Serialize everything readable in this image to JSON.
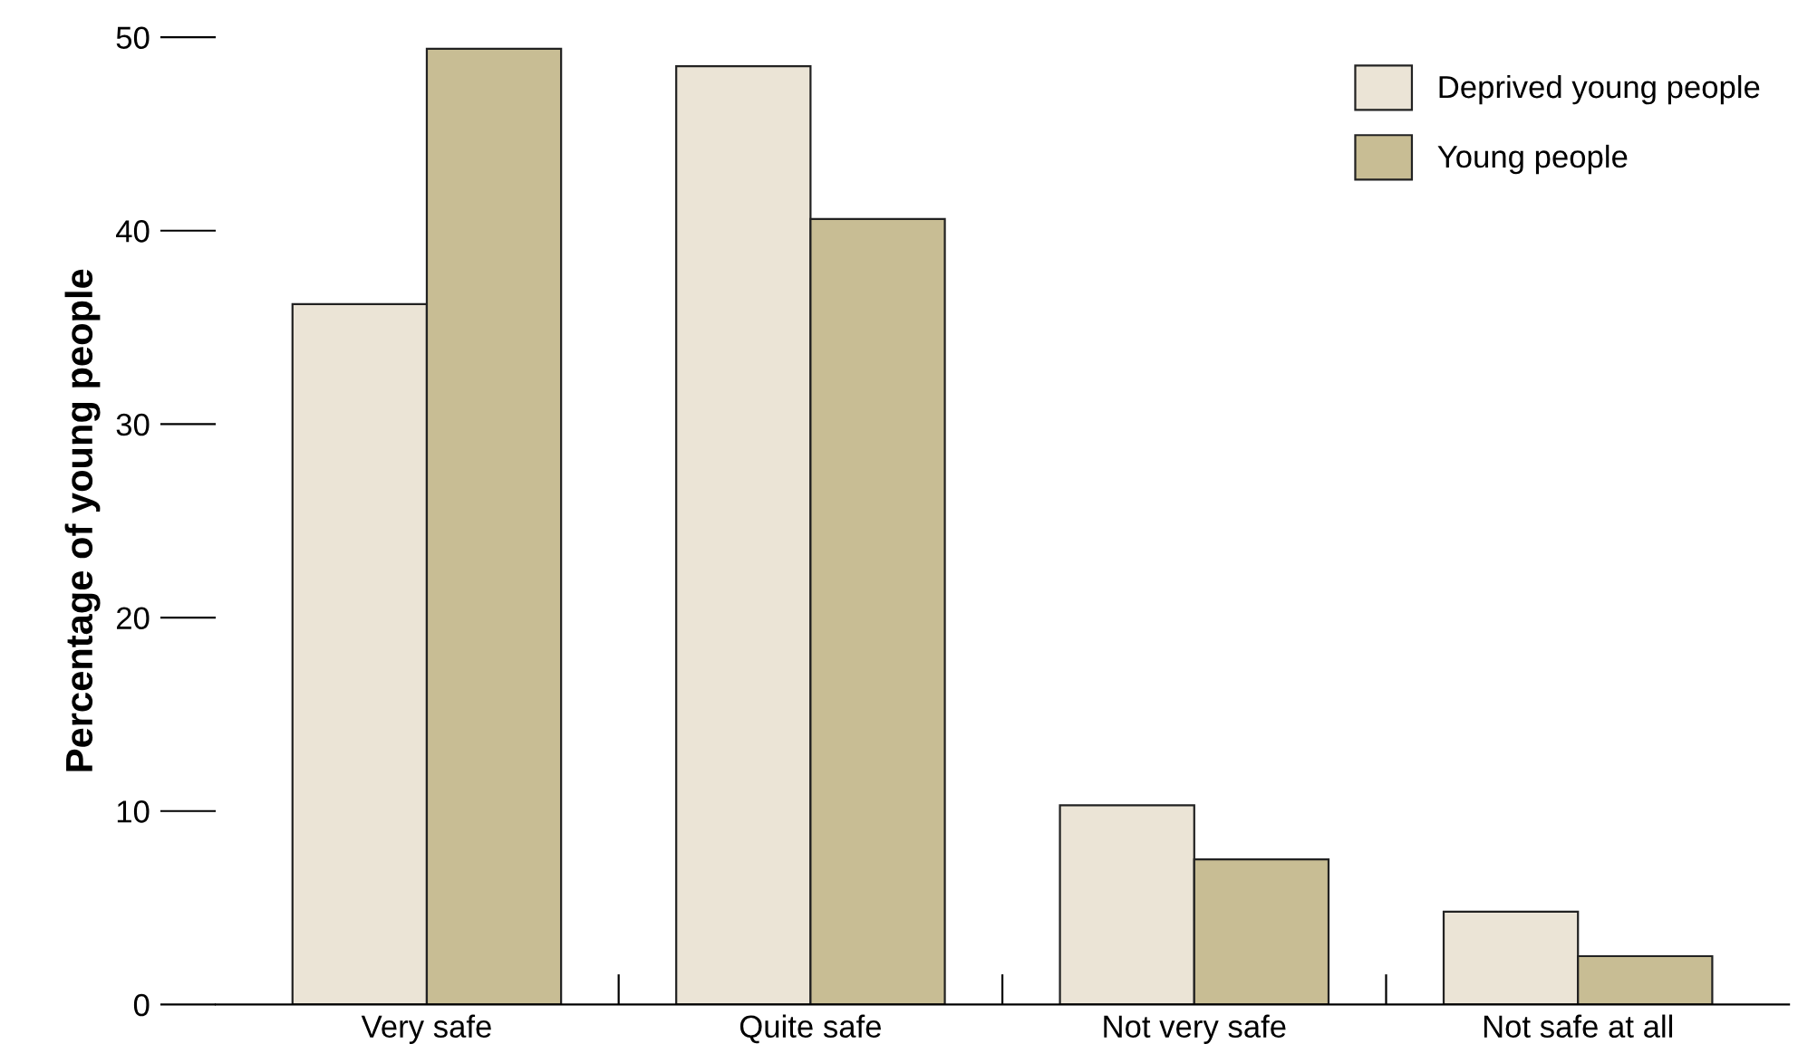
{
  "chart_data": {
    "type": "bar",
    "ylabel": "Percentage of young people",
    "categories": [
      "Very safe",
      "Quite safe",
      "Not very safe",
      "Not safe at all"
    ],
    "series": [
      {
        "name": "Deprived young people",
        "color": "#ebe4d6",
        "values": [
          36.2,
          48.5,
          10.3,
          4.8
        ]
      },
      {
        "name": "Young people",
        "color": "#c8bd94",
        "values": [
          49.4,
          40.6,
          7.5,
          2.5
        ]
      }
    ],
    "ylim": [
      0,
      50
    ],
    "yticks": [
      0,
      10,
      20,
      30,
      40,
      50
    ],
    "grid": false,
    "legend": "top right"
  }
}
